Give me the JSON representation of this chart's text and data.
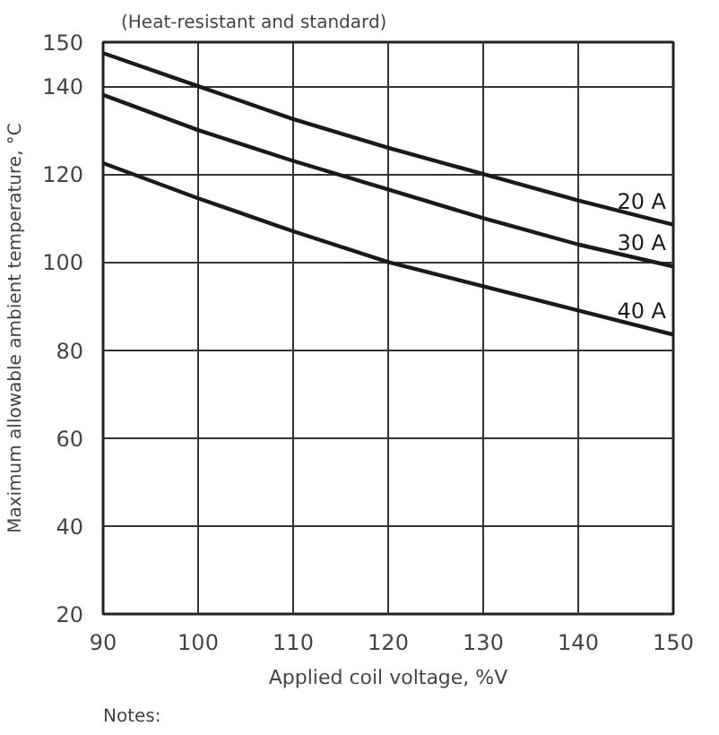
{
  "chart_data": {
    "type": "line",
    "title": "(Heat-resistant and standard)",
    "xlabel": "Applied coil voltage, %V",
    "ylabel": "Maximum allowable ambient temperature, °C",
    "x": [
      90,
      100,
      110,
      120,
      130,
      140,
      150
    ],
    "series": [
      {
        "name": "20 A",
        "color": "#1a1a1a",
        "values": [
          147.5,
          140,
          132.5,
          126,
          120,
          114,
          108.5
        ]
      },
      {
        "name": "30 A",
        "color": "#1a1a1a",
        "values": [
          138,
          130,
          123,
          116.5,
          110,
          104,
          99
        ]
      },
      {
        "name": "40 A",
        "color": "#1a1a1a",
        "values": [
          122.5,
          114.5,
          107,
          100,
          94.5,
          89,
          83.5
        ]
      }
    ],
    "xlim": [
      90,
      150
    ],
    "xticks": [
      90,
      100,
      110,
      120,
      130,
      140,
      150
    ],
    "ylim": [
      20,
      150
    ],
    "yticks": [
      20,
      40,
      60,
      80,
      100,
      120,
      140,
      150
    ],
    "grid": true,
    "marker": "none",
    "line_style": "solid",
    "annotations": [
      "Notes:"
    ]
  }
}
